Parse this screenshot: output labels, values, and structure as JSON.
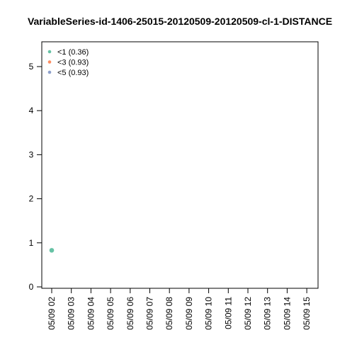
{
  "chart_data": {
    "type": "scatter",
    "title": "VariableSeries-id-1406-25015-20120509-20120509-cl-1-DISTANCE",
    "xlabel": "",
    "ylabel": "",
    "x_ticks": [
      "05/09 02",
      "05/09 03",
      "05/09 04",
      "05/09 05",
      "05/09 06",
      "05/09 07",
      "05/09 08",
      "05/09 09",
      "05/09 10",
      "05/09 11",
      "05/09 12",
      "05/09 13",
      "05/09 14",
      "05/09 15"
    ],
    "y_ticks": [
      "0",
      "1",
      "2",
      "3",
      "4",
      "5"
    ],
    "ylim": [
      0,
      5.35
    ],
    "legend_position": "top-left",
    "legend": [
      {
        "label": "<1 (0.36)",
        "color": "#66c2a5"
      },
      {
        "label": "<3 (0.93)",
        "color": "#fc8d62"
      },
      {
        "label": "<5 (0.93)",
        "color": "#8da0cb"
      }
    ],
    "series": [
      {
        "name": "<1 (0.36)",
        "color": "#66c2a5",
        "points": [
          {
            "x": "05/09 02",
            "y": 0.83
          }
        ]
      },
      {
        "name": "<3 (0.93)",
        "color": "#fc8d62",
        "points": []
      },
      {
        "name": "<5 (0.93)",
        "color": "#8da0cb",
        "points": []
      }
    ]
  }
}
